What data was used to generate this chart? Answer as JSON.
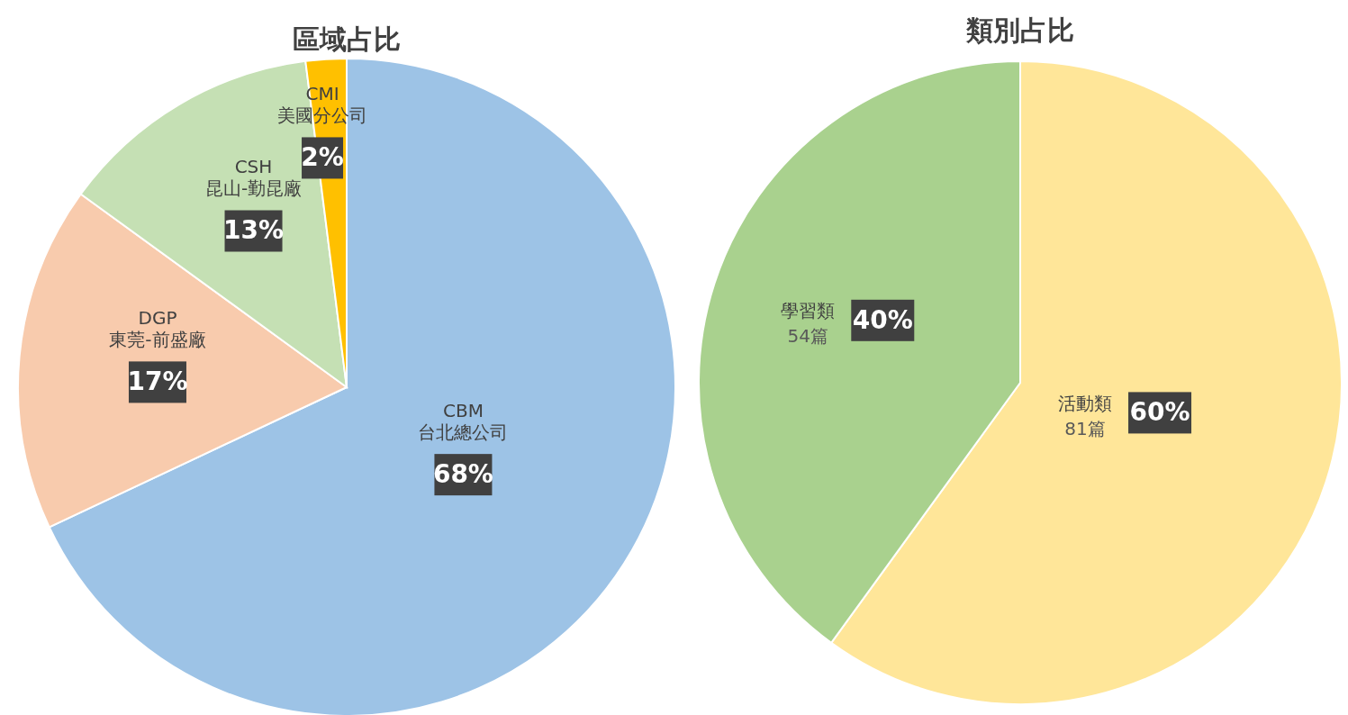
{
  "chart_data": [
    {
      "type": "pie",
      "title": "區域占比",
      "categories": [
        "CBM\n台北總公司",
        "DGP\n東莞-前盛廠",
        "CSH\n昆山-勤昆廠",
        "CMI\n美國分公司"
      ],
      "values": [
        68,
        17,
        13,
        2
      ],
      "colors": [
        "#9dc3e6",
        "#f8cbad",
        "#c5e0b4",
        "#ffc000"
      ],
      "value_labels": [
        "68%",
        "17%",
        "13%",
        "2%"
      ]
    },
    {
      "type": "pie",
      "title": "類別占比",
      "categories": [
        "活動類",
        "學習類"
      ],
      "values": [
        60,
        40
      ],
      "colors": [
        "#ffe699",
        "#a9d18e"
      ],
      "value_labels": [
        "60%",
        "40%"
      ],
      "annotations": [
        {
          "text": "81篇",
          "x": "活動類"
        },
        {
          "text": "54篇",
          "x": "學習類"
        }
      ]
    }
  ]
}
